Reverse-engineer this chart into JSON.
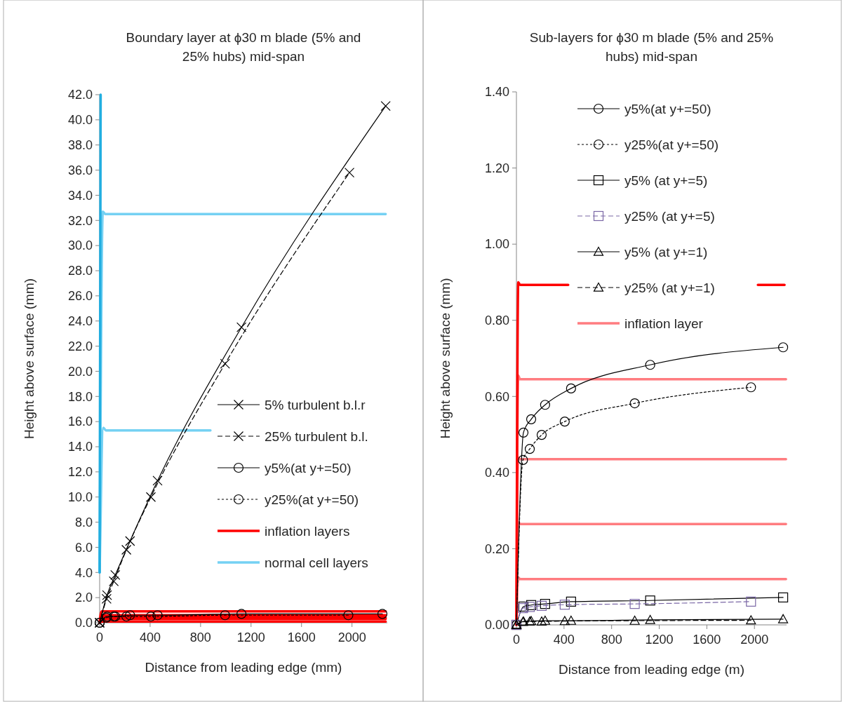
{
  "chart_data": [
    {
      "type": "line",
      "title": "Boundary layer at ϕ30 m blade (5% and 25% hubs) mid-span",
      "xlabel": "Distance from leading edge (mm)",
      "ylabel": "Height above surface (mm)",
      "xlim": [
        0,
        2280
      ],
      "xticks": [
        0,
        400,
        800,
        1200,
        1600,
        2000
      ],
      "ylim": [
        0,
        42
      ],
      "yticks": [
        {
          "value": 0,
          "label": "0.0"
        },
        {
          "value": 2,
          "label": "2.0"
        },
        {
          "value": 4,
          "label": "4.0"
        },
        {
          "value": 6,
          "label": "6.0"
        },
        {
          "value": 8,
          "label": "8.0"
        },
        {
          "value": 10,
          "label": "10.0"
        },
        {
          "value": 12,
          "label": "12.0"
        },
        {
          "value": 14,
          "label": "14.0"
        },
        {
          "value": 16,
          "label": "16.0"
        },
        {
          "value": 18,
          "label": "18.0"
        },
        {
          "value": 20,
          "label": "20.0"
        },
        {
          "value": 22,
          "label": "22.0"
        },
        {
          "value": 24,
          "label": "24.0"
        },
        {
          "value": 26,
          "label": "26.0"
        },
        {
          "value": 28,
          "label": "28.0"
        },
        {
          "value": 30,
          "label": "30.0"
        },
        {
          "value": 32,
          "label": "32.0"
        },
        {
          "value": 34,
          "label": "34.0"
        },
        {
          "value": 36,
          "label": "36.0"
        },
        {
          "value": 38,
          "label": "38.0"
        },
        {
          "value": 40,
          "label": "40.0"
        },
        {
          "value": 42,
          "label": "42.0"
        }
      ],
      "grid": false,
      "legend": "bottom right",
      "series": [
        {
          "name": "5% turbulent b.l.r",
          "color": "#000000",
          "marker": "cross",
          "line_style": "solid",
          "x": [
            0,
            59,
            124,
            241,
            459,
            1124,
            2267
          ],
          "values": [
            0,
            2.2,
            3.8,
            6.5,
            11.3,
            23.5,
            41.1
          ]
        },
        {
          "name": "25% turbulent b.l.",
          "color": "#000000",
          "marker": "cross",
          "line_style": "dashed",
          "x": [
            0,
            55,
            112,
            212,
            406,
            994,
            1980
          ],
          "values": [
            0,
            1.9,
            3.3,
            5.8,
            10.0,
            20.6,
            35.8
          ]
        },
        {
          "name": "y5%(at y+=50)",
          "color": "#000000",
          "marker": "circle",
          "line_style": "solid",
          "x": [
            0,
            59,
            124,
            241,
            459,
            1124,
            2241
          ],
          "values": [
            0,
            0.5,
            0.5,
            0.6,
            0.6,
            0.7,
            0.7
          ]
        },
        {
          "name": "y25%(at y+=50)",
          "color": "#000000",
          "marker": "circle",
          "line_style": "dotted",
          "x": [
            0,
            55,
            112,
            212,
            406,
            994,
            1971
          ],
          "values": [
            0,
            0.4,
            0.5,
            0.5,
            0.5,
            0.6,
            0.6
          ]
        },
        {
          "name": "inflation layers",
          "color": "#ff0000",
          "marker": "none",
          "line_style": "solid",
          "x": [
            0,
            15,
            2267
          ],
          "values": [
            0,
            0.9,
            0.9
          ]
        },
        {
          "name": "normal cell layers",
          "color": "#75d1f3",
          "marker": "none",
          "line_style": "solid",
          "x": [
            0,
            25,
            45,
            2267
          ],
          "values": [
            4,
            32.7,
            32.5,
            32.5
          ]
        },
        {
          "color": "#ff0000",
          "marker": "none",
          "line_style": "solid",
          "x": [
            0,
            15,
            2267
          ],
          "values": [
            0,
            0.6,
            0.6
          ]
        },
        {
          "color": "#ff0000",
          "marker": "none",
          "line_style": "solid",
          "x": [
            0,
            15,
            2267
          ],
          "values": [
            0,
            0.4,
            0.4
          ]
        },
        {
          "color": "#ff0000",
          "marker": "none",
          "line_style": "solid",
          "x": [
            0,
            15,
            2267
          ],
          "values": [
            0,
            0.3,
            0.3
          ]
        },
        {
          "color": "#ff0000",
          "marker": "none",
          "line_style": "solid",
          "x": [
            0,
            15,
            2267
          ],
          "values": [
            0,
            0.1,
            0.1
          ]
        },
        {
          "color": "#75d1f3",
          "marker": "none",
          "line_style": "solid",
          "x": [
            0,
            30,
            50,
            878
          ],
          "values": [
            4,
            15.5,
            15.3,
            15.3
          ]
        },
        {
          "color": "#22aee0",
          "marker": "none",
          "line_style": "solid",
          "x": [
            0,
            8
          ],
          "values": [
            4,
            42
          ]
        }
      ]
    },
    {
      "type": "line",
      "title": "Sub-layers for ϕ30 m blade (5% and 25% hubs) mid-span",
      "xlabel": "Distance from leading edge (m)",
      "ylabel": "Height above surface (mm)",
      "xlim": [
        0,
        2270
      ],
      "xticks": [
        0,
        400,
        800,
        1200,
        1600,
        2000
      ],
      "ylim": [
        0,
        1.4
      ],
      "yticks": [
        {
          "value": 0,
          "label": "0.00"
        },
        {
          "value": 0.2,
          "label": "0.20"
        },
        {
          "value": 0.4,
          "label": "0.40"
        },
        {
          "value": 0.6,
          "label": "0.60"
        },
        {
          "value": 0.8,
          "label": "0.80"
        },
        {
          "value": 1,
          "label": "1.00"
        },
        {
          "value": 1.2,
          "label": "1.20"
        },
        {
          "value": 1.4,
          "label": "1.40"
        }
      ],
      "grid": false,
      "legend": "top right",
      "series": [
        {
          "name": "y5%(at y+=50)",
          "color": "#000000",
          "marker": "circle",
          "line_style": "solid",
          "x": [
            0,
            59,
            124,
            241,
            459,
            1124,
            2241
          ],
          "values": [
            0,
            0.505,
            0.54,
            0.578,
            0.621,
            0.683,
            0.729
          ]
        },
        {
          "name": "y25%(at y+=50)",
          "color": "#000000",
          "marker": "circle",
          "line_style": "dotted",
          "x": [
            0,
            55,
            112,
            212,
            406,
            994,
            1971
          ],
          "values": [
            0,
            0.433,
            0.462,
            0.499,
            0.534,
            0.582,
            0.624
          ]
        },
        {
          "name": "y5% (at y+=5)",
          "color": "#000000",
          "marker": "square",
          "line_style": "solid",
          "x": [
            0,
            59,
            124,
            241,
            459,
            1124,
            2241
          ],
          "values": [
            0,
            0.048,
            0.052,
            0.055,
            0.061,
            0.064,
            0.072
          ]
        },
        {
          "name": "y25% (at y+=5)",
          "color": "#7b68a6",
          "marker": "square",
          "line_style": "dashed",
          "x": [
            0,
            55,
            112,
            212,
            406,
            994,
            1971
          ],
          "values": [
            0,
            0.044,
            0.047,
            0.05,
            0.053,
            0.055,
            0.061
          ]
        },
        {
          "name": "y5% (at y+=1)",
          "color": "#000000",
          "marker": "triangle",
          "line_style": "solid",
          "x": [
            0,
            59,
            124,
            241,
            459,
            1124,
            2241
          ],
          "values": [
            0,
            0.009,
            0.01,
            0.011,
            0.011,
            0.013,
            0.015
          ]
        },
        {
          "name": "y25% (at y+=1)",
          "color": "#000000",
          "marker": "triangle",
          "line_style": "dashed",
          "x": [
            0,
            55,
            112,
            212,
            406,
            994,
            1971
          ],
          "values": [
            0,
            0.008,
            0.009,
            0.009,
            0.01,
            0.011,
            0.012
          ]
        },
        {
          "name": "inflation layer",
          "color": "#ff7c80",
          "marker": "none",
          "line_style": "solid",
          "x": [
            0,
            15,
            30,
            2265
          ],
          "values": [
            0,
            0.655,
            0.645,
            0.645
          ]
        },
        {
          "color": "#ff7c80",
          "marker": "none",
          "line_style": "solid",
          "x": [
            0,
            15,
            30,
            2265
          ],
          "values": [
            0,
            0.44,
            0.435,
            0.435
          ]
        },
        {
          "color": "#ff7c80",
          "marker": "none",
          "line_style": "solid",
          "x": [
            0,
            15,
            30,
            2265
          ],
          "values": [
            0,
            0.27,
            0.265,
            0.265
          ]
        },
        {
          "color": "#ff7c80",
          "marker": "none",
          "line_style": "solid",
          "x": [
            0,
            15,
            30,
            2265
          ],
          "values": [
            0,
            0.125,
            0.12,
            0.12
          ]
        },
        {
          "color": "#ff0000",
          "marker": "none",
          "line_style": "solid",
          "x": [
            0,
            15,
            30,
            435,
            1200,
            2029,
            2253
          ],
          "values": [
            0,
            0.9,
            0.893,
            0.893,
            null,
            0.893,
            0.893
          ]
        }
      ]
    }
  ]
}
